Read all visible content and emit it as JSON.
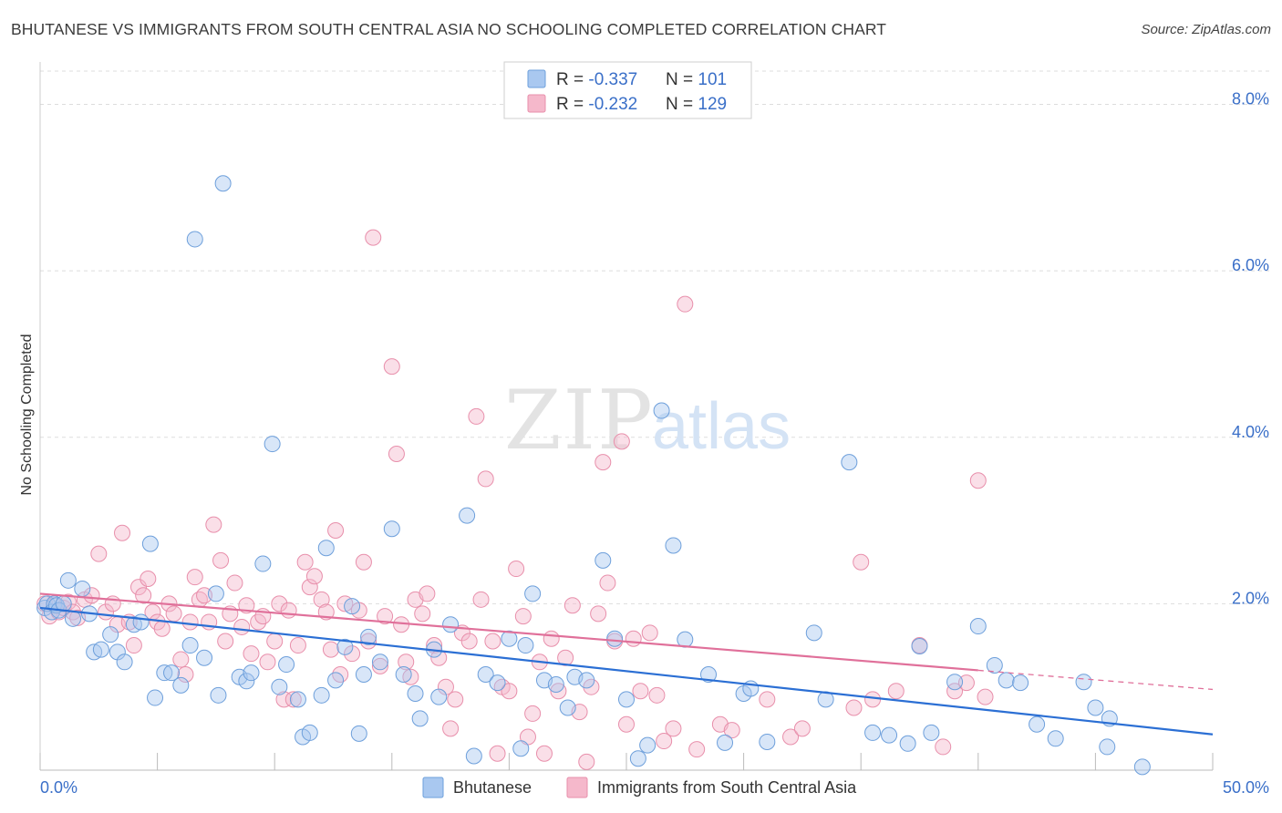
{
  "title": "BHUTANESE VS IMMIGRANTS FROM SOUTH CENTRAL ASIA NO SCHOOLING COMPLETED CORRELATION CHART",
  "source": "Source: ZipAtlas.com",
  "watermark": {
    "zip": "ZIP",
    "atlas": "atlas"
  },
  "colors": {
    "blue_fill": "#a9c8f0",
    "blue_stroke": "#6d9fdb",
    "blue_line": "#2b6fd4",
    "pink_fill": "#f5b8cb",
    "pink_stroke": "#e88fab",
    "pink_line": "#e0709a",
    "axis_label": "#3a6fc8",
    "grid": "#dddddd"
  },
  "legend_top": [
    {
      "r_label": "R = ",
      "r_value": "-0.337",
      "n_label": "N = ",
      "n_value": "101",
      "color": "#a9c8f0"
    },
    {
      "r_label": "R = ",
      "r_value": "-0.232",
      "n_label": "N = ",
      "n_value": "129",
      "color": "#f5b8cb"
    }
  ],
  "chart_data": {
    "type": "scatter",
    "title": "BHUTANESE VS IMMIGRANTS FROM SOUTH CENTRAL ASIA NO SCHOOLING COMPLETED CORRELATION CHART",
    "xlabel": "",
    "ylabel": "No Schooling Completed",
    "xlim": [
      0,
      50
    ],
    "ylim": [
      0,
      8.4
    ],
    "x_tick_labels": [
      "0.0%",
      "50.0%"
    ],
    "y_ticks": [
      2,
      4,
      6,
      8
    ],
    "y_tick_labels": [
      "2.0%",
      "4.0%",
      "6.0%",
      "8.0%"
    ],
    "grid": true,
    "legend_position": "bottom-center",
    "series": [
      {
        "name": "Bhutanese",
        "color": "#a9c8f0",
        "trend": {
          "x": [
            0,
            50
          ],
          "y": [
            1.95,
            0.43
          ]
        },
        "points": [
          [
            0.2,
            1.95
          ],
          [
            0.3,
            2.0
          ],
          [
            0.5,
            1.9
          ],
          [
            0.6,
            2.0
          ],
          [
            0.7,
            1.98
          ],
          [
            0.8,
            1.92
          ],
          [
            1.0,
            2.0
          ],
          [
            1.2,
            2.28
          ],
          [
            1.4,
            1.82
          ],
          [
            1.8,
            2.18
          ],
          [
            2.1,
            1.88
          ],
          [
            2.3,
            1.42
          ],
          [
            2.6,
            1.45
          ],
          [
            3.0,
            1.63
          ],
          [
            3.3,
            1.42
          ],
          [
            3.6,
            1.3
          ],
          [
            4.0,
            1.75
          ],
          [
            4.3,
            1.78
          ],
          [
            4.7,
            2.72
          ],
          [
            4.9,
            0.87
          ],
          [
            5.3,
            1.17
          ],
          [
            5.6,
            1.17
          ],
          [
            6.0,
            1.02
          ],
          [
            6.4,
            1.5
          ],
          [
            6.6,
            6.38
          ],
          [
            7.0,
            1.35
          ],
          [
            7.5,
            2.12
          ],
          [
            7.6,
            0.9
          ],
          [
            7.8,
            7.05
          ],
          [
            8.5,
            1.12
          ],
          [
            8.8,
            1.07
          ],
          [
            9.0,
            1.17
          ],
          [
            9.5,
            2.48
          ],
          [
            9.9,
            3.92
          ],
          [
            10.2,
            1.0
          ],
          [
            10.5,
            1.27
          ],
          [
            11.0,
            0.85
          ],
          [
            11.2,
            0.4
          ],
          [
            11.5,
            0.45
          ],
          [
            12.0,
            0.9
          ],
          [
            12.2,
            2.67
          ],
          [
            12.6,
            1.08
          ],
          [
            13.0,
            1.48
          ],
          [
            13.3,
            1.97
          ],
          [
            13.6,
            0.44
          ],
          [
            13.8,
            1.15
          ],
          [
            14.0,
            1.6
          ],
          [
            14.5,
            1.3
          ],
          [
            15.0,
            2.9
          ],
          [
            15.5,
            1.15
          ],
          [
            16.0,
            0.92
          ],
          [
            16.2,
            0.62
          ],
          [
            16.8,
            1.45
          ],
          [
            17.0,
            0.88
          ],
          [
            17.5,
            1.75
          ],
          [
            18.2,
            3.06
          ],
          [
            18.5,
            0.17
          ],
          [
            19.0,
            1.15
          ],
          [
            19.5,
            1.05
          ],
          [
            20.0,
            1.58
          ],
          [
            20.5,
            0.26
          ],
          [
            20.7,
            1.5
          ],
          [
            21.0,
            2.12
          ],
          [
            21.5,
            1.08
          ],
          [
            22.0,
            1.03
          ],
          [
            22.5,
            0.75
          ],
          [
            22.8,
            1.12
          ],
          [
            23.3,
            1.08
          ],
          [
            24.0,
            2.52
          ],
          [
            24.5,
            1.58
          ],
          [
            25.0,
            0.85
          ],
          [
            25.5,
            0.14
          ],
          [
            25.9,
            0.3
          ],
          [
            26.5,
            4.32
          ],
          [
            27.0,
            2.7
          ],
          [
            27.5,
            1.57
          ],
          [
            28.5,
            1.15
          ],
          [
            29.2,
            0.33
          ],
          [
            30.0,
            0.92
          ],
          [
            30.3,
            0.98
          ],
          [
            31.0,
            0.34
          ],
          [
            33.0,
            1.65
          ],
          [
            33.5,
            0.85
          ],
          [
            34.5,
            3.7
          ],
          [
            35.5,
            0.45
          ],
          [
            36.2,
            0.42
          ],
          [
            37.0,
            0.32
          ],
          [
            37.5,
            1.49
          ],
          [
            38.0,
            0.45
          ],
          [
            39.0,
            1.06
          ],
          [
            40.0,
            1.73
          ],
          [
            40.7,
            1.26
          ],
          [
            41.2,
            1.08
          ],
          [
            41.8,
            1.05
          ],
          [
            42.5,
            0.55
          ],
          [
            43.3,
            0.38
          ],
          [
            44.5,
            1.06
          ],
          [
            45.0,
            0.75
          ],
          [
            45.5,
            0.28
          ],
          [
            45.6,
            0.62
          ],
          [
            47.0,
            0.04
          ]
        ]
      },
      {
        "name": "Immigrants from South Central Asia",
        "color": "#f5b8cb",
        "trend": {
          "x": [
            0,
            40
          ],
          "y": [
            2.12,
            1.2
          ]
        },
        "trend_dashed": {
          "x": [
            40,
            50
          ],
          "y": [
            1.2,
            0.97
          ]
        },
        "points": [
          [
            0.2,
            2.0
          ],
          [
            0.4,
            1.85
          ],
          [
            0.6,
            1.98
          ],
          [
            0.8,
            1.9
          ],
          [
            1.0,
            1.95
          ],
          [
            1.2,
            2.02
          ],
          [
            1.4,
            1.9
          ],
          [
            1.6,
            1.83
          ],
          [
            1.9,
            2.05
          ],
          [
            2.2,
            2.1
          ],
          [
            2.5,
            2.6
          ],
          [
            2.8,
            1.9
          ],
          [
            3.1,
            2.0
          ],
          [
            3.3,
            1.75
          ],
          [
            3.5,
            2.85
          ],
          [
            3.8,
            1.78
          ],
          [
            4.0,
            1.5
          ],
          [
            4.2,
            2.2
          ],
          [
            4.4,
            2.1
          ],
          [
            4.6,
            2.3
          ],
          [
            4.8,
            1.9
          ],
          [
            5.0,
            1.78
          ],
          [
            5.2,
            1.7
          ],
          [
            5.5,
            2.0
          ],
          [
            5.7,
            1.88
          ],
          [
            6.0,
            1.33
          ],
          [
            6.2,
            1.15
          ],
          [
            6.4,
            1.78
          ],
          [
            6.6,
            2.32
          ],
          [
            6.8,
            2.05
          ],
          [
            7.0,
            2.1
          ],
          [
            7.2,
            1.78
          ],
          [
            7.4,
            2.95
          ],
          [
            7.7,
            2.52
          ],
          [
            7.9,
            1.55
          ],
          [
            8.1,
            1.88
          ],
          [
            8.3,
            2.25
          ],
          [
            8.6,
            1.72
          ],
          [
            8.8,
            1.98
          ],
          [
            9.0,
            1.4
          ],
          [
            9.3,
            1.78
          ],
          [
            9.5,
            1.85
          ],
          [
            9.7,
            1.3
          ],
          [
            10.0,
            1.55
          ],
          [
            10.2,
            2.0
          ],
          [
            10.4,
            0.85
          ],
          [
            10.6,
            1.92
          ],
          [
            10.8,
            0.85
          ],
          [
            11.0,
            1.5
          ],
          [
            11.3,
            2.5
          ],
          [
            11.5,
            2.2
          ],
          [
            11.7,
            2.33
          ],
          [
            12.0,
            2.05
          ],
          [
            12.2,
            1.9
          ],
          [
            12.4,
            1.45
          ],
          [
            12.6,
            2.88
          ],
          [
            12.8,
            1.15
          ],
          [
            13.0,
            2.0
          ],
          [
            13.3,
            1.4
          ],
          [
            13.6,
            1.92
          ],
          [
            13.8,
            2.5
          ],
          [
            14.0,
            1.55
          ],
          [
            14.2,
            6.4
          ],
          [
            14.5,
            1.25
          ],
          [
            14.7,
            1.85
          ],
          [
            15.0,
            4.85
          ],
          [
            15.2,
            3.8
          ],
          [
            15.4,
            1.75
          ],
          [
            15.6,
            1.3
          ],
          [
            15.8,
            1.12
          ],
          [
            16.0,
            2.05
          ],
          [
            16.3,
            1.88
          ],
          [
            16.5,
            2.12
          ],
          [
            16.8,
            1.5
          ],
          [
            17.0,
            1.35
          ],
          [
            17.3,
            1.0
          ],
          [
            17.5,
            0.5
          ],
          [
            17.7,
            0.85
          ],
          [
            18.0,
            1.65
          ],
          [
            18.3,
            1.55
          ],
          [
            18.6,
            4.25
          ],
          [
            18.8,
            2.05
          ],
          [
            19.0,
            3.5
          ],
          [
            19.3,
            1.55
          ],
          [
            19.5,
            0.2
          ],
          [
            19.7,
            1.0
          ],
          [
            20.0,
            0.95
          ],
          [
            20.3,
            2.42
          ],
          [
            20.6,
            1.85
          ],
          [
            20.8,
            0.4
          ],
          [
            21.0,
            0.68
          ],
          [
            21.3,
            1.3
          ],
          [
            21.5,
            0.2
          ],
          [
            21.8,
            1.58
          ],
          [
            22.1,
            0.95
          ],
          [
            22.4,
            1.35
          ],
          [
            22.7,
            1.98
          ],
          [
            23.0,
            0.7
          ],
          [
            23.3,
            0.1
          ],
          [
            23.5,
            1.0
          ],
          [
            23.8,
            1.88
          ],
          [
            24.0,
            3.7
          ],
          [
            24.2,
            2.25
          ],
          [
            24.5,
            1.55
          ],
          [
            24.8,
            3.95
          ],
          [
            25.0,
            0.55
          ],
          [
            25.3,
            1.58
          ],
          [
            25.6,
            0.95
          ],
          [
            26.0,
            1.65
          ],
          [
            26.3,
            0.9
          ],
          [
            26.6,
            0.35
          ],
          [
            27.0,
            0.5
          ],
          [
            27.5,
            5.6
          ],
          [
            28.0,
            0.25
          ],
          [
            29.0,
            0.55
          ],
          [
            29.5,
            0.48
          ],
          [
            31.0,
            0.85
          ],
          [
            32.0,
            0.4
          ],
          [
            32.5,
            0.5
          ],
          [
            34.7,
            0.75
          ],
          [
            35.0,
            2.5
          ],
          [
            35.5,
            0.85
          ],
          [
            36.5,
            0.95
          ],
          [
            37.5,
            1.5
          ],
          [
            38.5,
            0.28
          ],
          [
            39.0,
            0.95
          ],
          [
            39.5,
            1.05
          ],
          [
            40.0,
            3.48
          ],
          [
            40.3,
            0.88
          ]
        ]
      }
    ]
  },
  "legend_bottom": [
    {
      "label": "Bhutanese",
      "color": "#a9c8f0"
    },
    {
      "label": "Immigrants from South Central Asia",
      "color": "#f5b8cb"
    }
  ]
}
